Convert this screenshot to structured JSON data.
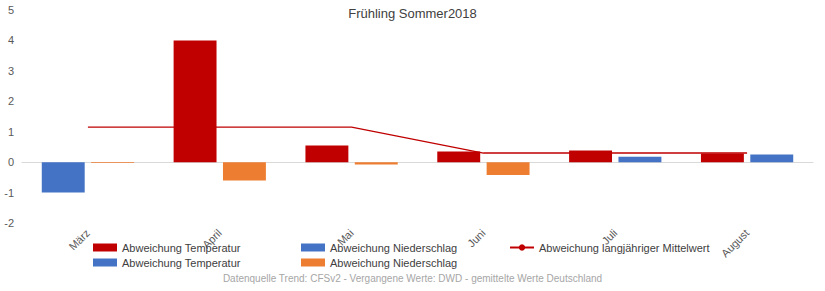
{
  "chart_data": {
    "type": "bar",
    "title": "Frühling Sommer2018",
    "categories": [
      "März",
      "April",
      "Mai",
      "Juni",
      "Juli",
      "August"
    ],
    "series": [
      {
        "name": "Abweichung Temperatur",
        "color": "#c00000",
        "values": [
          null,
          4.0,
          0.55,
          0.35,
          0.38,
          0.28
        ]
      },
      {
        "name": "Abweichung Niederschlag",
        "color": "#4472c4",
        "values": [
          null,
          null,
          null,
          null,
          0.18,
          0.25
        ]
      },
      {
        "name": "Abweichung langjähriger Mittelwert",
        "type": "line",
        "color": "#c00000",
        "marker": "none",
        "line_style": "solid",
        "values": [
          1.15,
          1.15,
          1.15,
          0.3,
          0.3,
          0.3
        ]
      },
      {
        "name": "Abweichung Temperatur",
        "color": "#4472c4",
        "values": [
          -1.0,
          null,
          null,
          null,
          null,
          null
        ]
      },
      {
        "name": "Abweichung Niederschlag",
        "color": "#ed7d31",
        "values": [
          -0.03,
          -0.6,
          -0.08,
          -0.42,
          null,
          null
        ]
      }
    ],
    "ylim": [
      -2,
      5
    ],
    "yticks": [
      -2,
      -1,
      0,
      1,
      2,
      3,
      4,
      5
    ],
    "grid": false,
    "stacked": true,
    "legend": "bottom",
    "annotations": [
      "Datenquelle Trend: CFSv2 - Vergangene Werte: DWD - gemittelte Werte Deutschland"
    ]
  }
}
